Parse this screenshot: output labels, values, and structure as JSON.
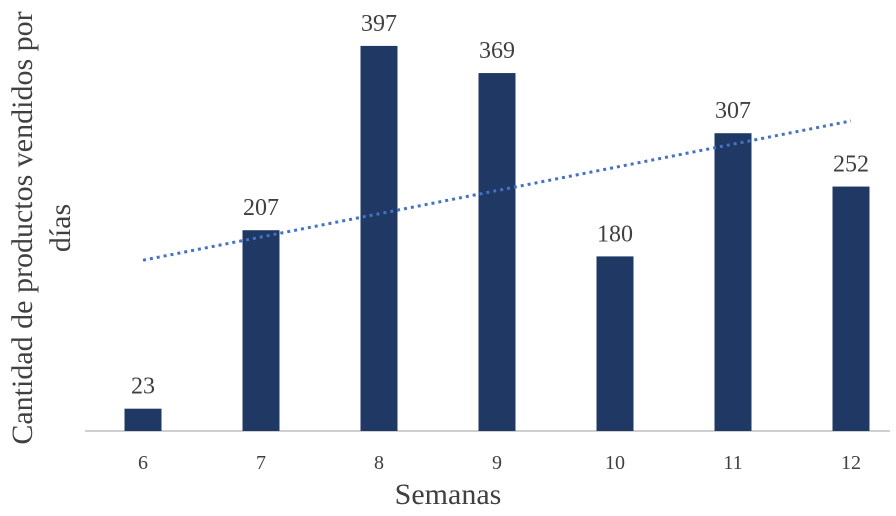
{
  "chart_data": {
    "type": "bar",
    "categories": [
      "6",
      "7",
      "8",
      "9",
      "10",
      "11",
      "12"
    ],
    "values": [
      23,
      207,
      397,
      369,
      180,
      307,
      252
    ],
    "xlabel": "Semanas",
    "ylabel": "Cantidad de productos vendidos por días",
    "ylim": [
      0,
      400
    ],
    "grid": false,
    "trendline": {
      "type": "linear",
      "style": "dotted"
    },
    "colors": {
      "bar": "#203864",
      "trendline": "#4472C4",
      "axis": "#BFBFBF",
      "text": "#404040"
    }
  }
}
